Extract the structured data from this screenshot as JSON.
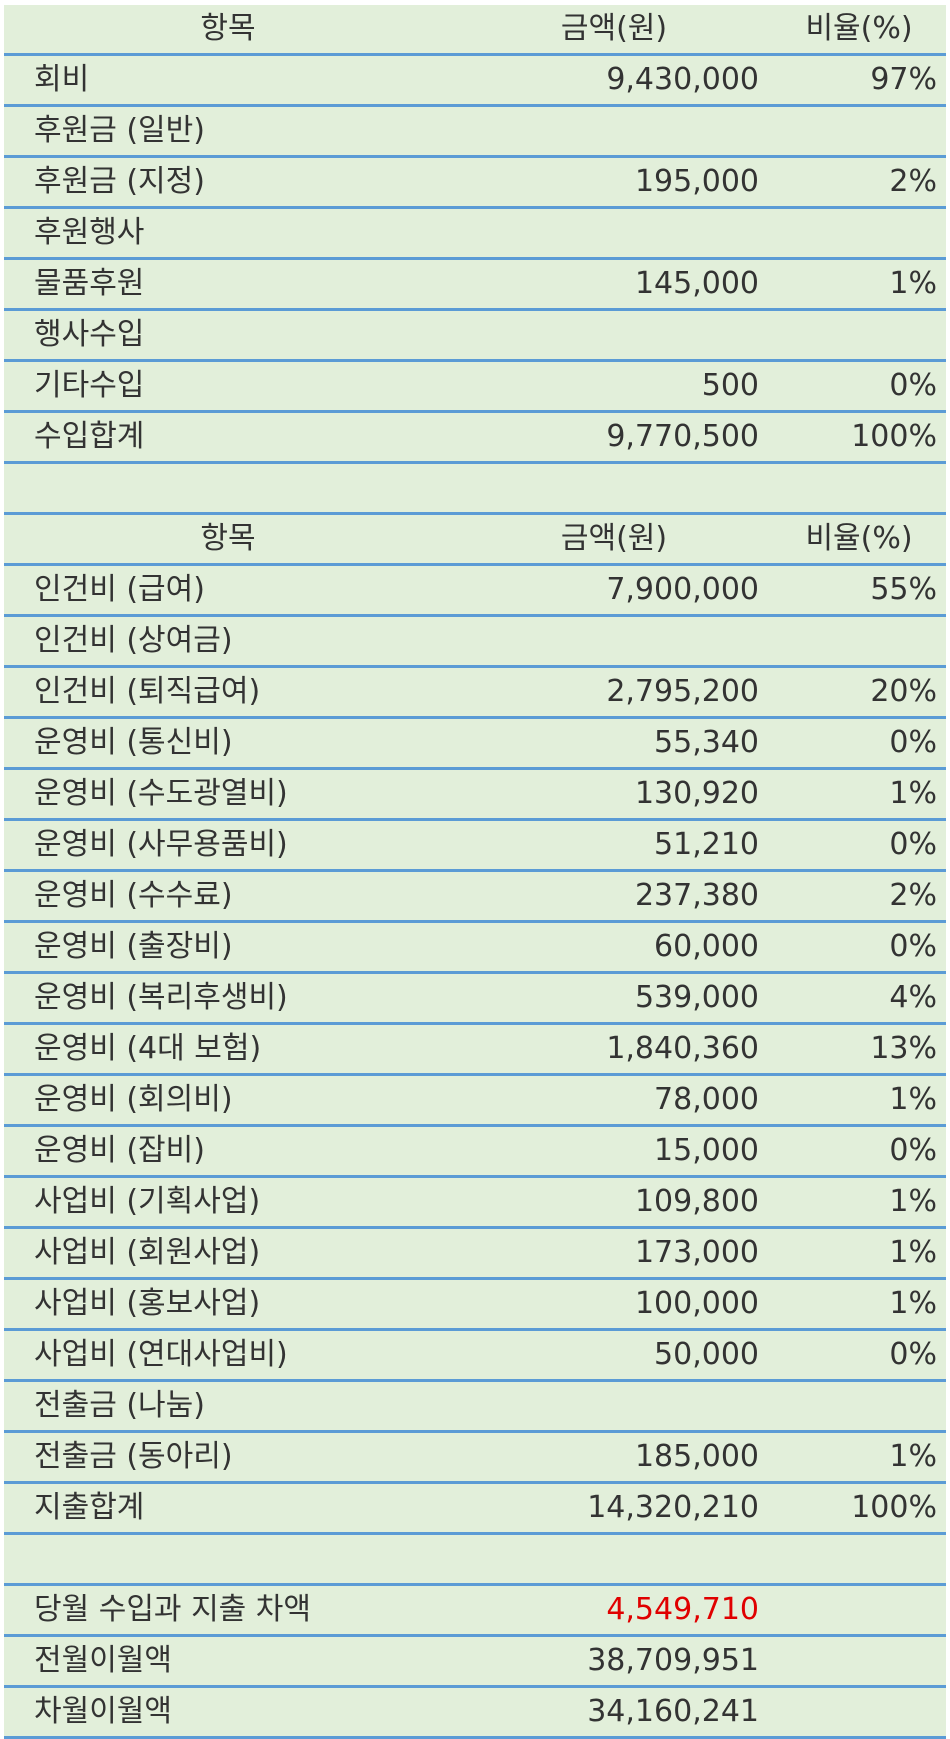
{
  "income": {
    "header": [
      "항목",
      "금액(원)",
      "비율(%)"
    ],
    "rows": [
      [
        "회비",
        "9,430,000",
        "97%"
      ],
      [
        "후원금 (일반)",
        null,
        null
      ],
      [
        "후원금 (지정)",
        "195,000",
        "2%"
      ],
      [
        "후원행사",
        null,
        null
      ],
      [
        "물품후원",
        "145,000",
        "1%"
      ],
      [
        "행사수입",
        null,
        null
      ],
      [
        "기타수입",
        "500",
        "0%"
      ],
      [
        "수입합계",
        "9,770,500",
        "100%"
      ]
    ]
  },
  "expense": {
    "header": [
      "항목",
      "금액(원)",
      "비율(%)"
    ],
    "rows": [
      [
        "인건비 (급여)",
        "7,900,000",
        "55%"
      ],
      [
        "인건비 (상여금)",
        null,
        null
      ],
      [
        "인건비 (퇴직급여)",
        "2,795,200",
        "20%"
      ],
      [
        "운영비 (통신비)",
        "55,340",
        "0%"
      ],
      [
        "운영비 (수도광열비)",
        "130,920",
        "1%"
      ],
      [
        "운영비 (사무용품비)",
        "51,210",
        "0%"
      ],
      [
        "운영비 (수수료)",
        "237,380",
        "2%"
      ],
      [
        "운영비 (출장비)",
        "60,000",
        "0%"
      ],
      [
        "운영비 (복리후생비)",
        "539,000",
        "4%"
      ],
      [
        "운영비 (4대 보험)",
        "1,840,360",
        "13%"
      ],
      [
        "운영비 (회의비)",
        "78,000",
        "1%"
      ],
      [
        "운영비 (잡비)",
        "15,000",
        "0%"
      ],
      [
        "사업비 (기획사업)",
        "109,800",
        "1%"
      ],
      [
        "사업비 (회원사업)",
        "173,000",
        "1%"
      ],
      [
        "사업비 (홍보사업)",
        "100,000",
        "1%"
      ],
      [
        "사업비 (연대사업비)",
        "50,000",
        "0%"
      ],
      [
        "전출금 (나눔)",
        null,
        null
      ],
      [
        "전출금 (동아리)",
        "185,000",
        "1%"
      ],
      [
        "지출합계",
        "14,320,210",
        "100%"
      ]
    ]
  },
  "summary": {
    "rows": [
      [
        "당월 수입과 지출 차액",
        "4,549,710"
      ],
      [
        "전월이월액",
        "38,709,951"
      ],
      [
        "차월이월액",
        "34,160,241"
      ]
    ]
  }
}
